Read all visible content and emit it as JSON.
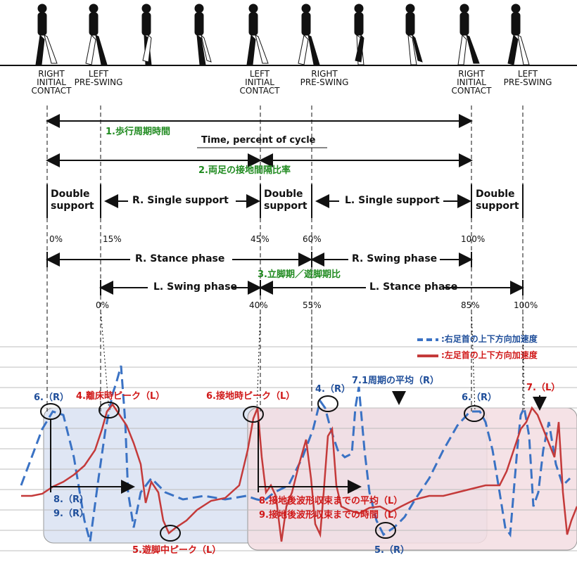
{
  "gait_events": [
    {
      "id": "rc1",
      "text": "RIGHT\nINITIAL\nCONTACT"
    },
    {
      "id": "lps1",
      "text": "LEFT\nPRE-SWING"
    },
    {
      "id": "lic",
      "text": "LEFT\nINITIAL\nCONTACT"
    },
    {
      "id": "rps",
      "text": "RIGHT\nPRE-SWING"
    },
    {
      "id": "rc2",
      "text": "RIGHT\nINITIAL\nCONTACT"
    },
    {
      "id": "lps2",
      "text": "LEFT\nPRE-SWING"
    }
  ],
  "labels": {
    "cycle_time": "1.歩行周期時間",
    "time_title": "Time, percent of cycle",
    "contact_ratio": "2.両足の接地間隔比率",
    "stance_swing_ratio": "3.立脚期／遊脚期比",
    "double_support": "Double\nsupport",
    "r_single_support": "R. Single support",
    "l_single_support": "L. Single support",
    "r_stance": "R. Stance phase",
    "r_swing": "R. Swing phase",
    "l_swing": "L. Swing phase",
    "l_stance": "L. Stance phase"
  },
  "percent_top": [
    "0%",
    "15%",
    "45%",
    "60%",
    "100%"
  ],
  "percent_bottom": [
    "0%",
    "40%",
    "55%",
    "85%",
    "100%"
  ],
  "legend": {
    "right": {
      "label": ":右足首の上下方向加速度",
      "color": "#3a72c4"
    },
    "left": {
      "label": ":左足首の上下方向加速度",
      "color": "#c43a3a"
    }
  },
  "annotations": {
    "a6r_left": "6.（R）",
    "a4l": "4.離床時ピーク（L）",
    "a6l": "6.接地時ピーク（L）",
    "a4r": "4.（R）",
    "a71": "7.1周期の平均（R）",
    "a6r_right": "6.（R）",
    "a7l": "7.（L）",
    "a8r": "8.（R）",
    "a9r": "9.（R）",
    "a8l": "8.接地後波形収束までの平均（L）",
    "a9l": "9.接地後波形収束までの時間（L）",
    "a5l": "5.遊脚中ピーク（L）",
    "a5r": "5.（R）"
  },
  "colors": {
    "green": "#1f8a1f",
    "red_text": "#d01818",
    "blue_text": "#1f4e9a",
    "right_signal": "#3a72c4",
    "left_signal": "#c43a3a",
    "panel_blue": "#dfe6f4",
    "panel_pink": "#f3dde2"
  }
}
